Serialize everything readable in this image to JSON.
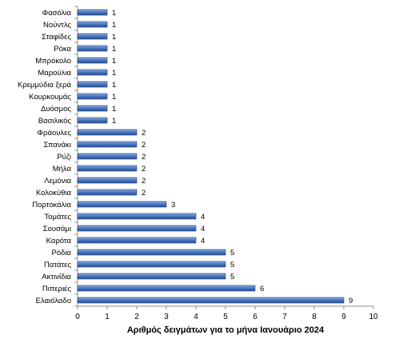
{
  "chart_data": {
    "type": "bar",
    "orientation": "horizontal",
    "xlabel": "Αριθμός δειγμάτων για το μήνα Ιανουάριο 2024",
    "xlim": [
      0,
      10
    ],
    "xticks": [
      0,
      1,
      2,
      3,
      4,
      5,
      6,
      7,
      8,
      9,
      10
    ],
    "grid": false,
    "bar_color": "#4a77c0",
    "bar_edge_color": "#1f3f7a",
    "categories": [
      "Φασόλια",
      "Νούντλς",
      "Σταφίδες",
      "Ρόκα",
      "Μπρόκολο",
      "Μαρούλια",
      "Κρεμμύδια ξερά",
      "Κουρκουμάς",
      "Δυόσμος",
      "Βασιλικός",
      "Φράουλες",
      "Σπανάκι",
      "Ρύζι",
      "Μήλα",
      "Λεμόνια",
      "Κολοκύθια",
      "Πορτοκάλια",
      "Τομάτες",
      "Σουσάμι",
      "Καρότα",
      "Ρόδια",
      "Πατάτες",
      "Ακτινίδια",
      "Πιπεριές",
      "Ελαιόλαδο"
    ],
    "values": [
      1,
      1,
      1,
      1,
      1,
      1,
      1,
      1,
      1,
      1,
      2,
      2,
      2,
      2,
      2,
      2,
      3,
      4,
      4,
      4,
      5,
      5,
      5,
      6,
      9
    ]
  }
}
